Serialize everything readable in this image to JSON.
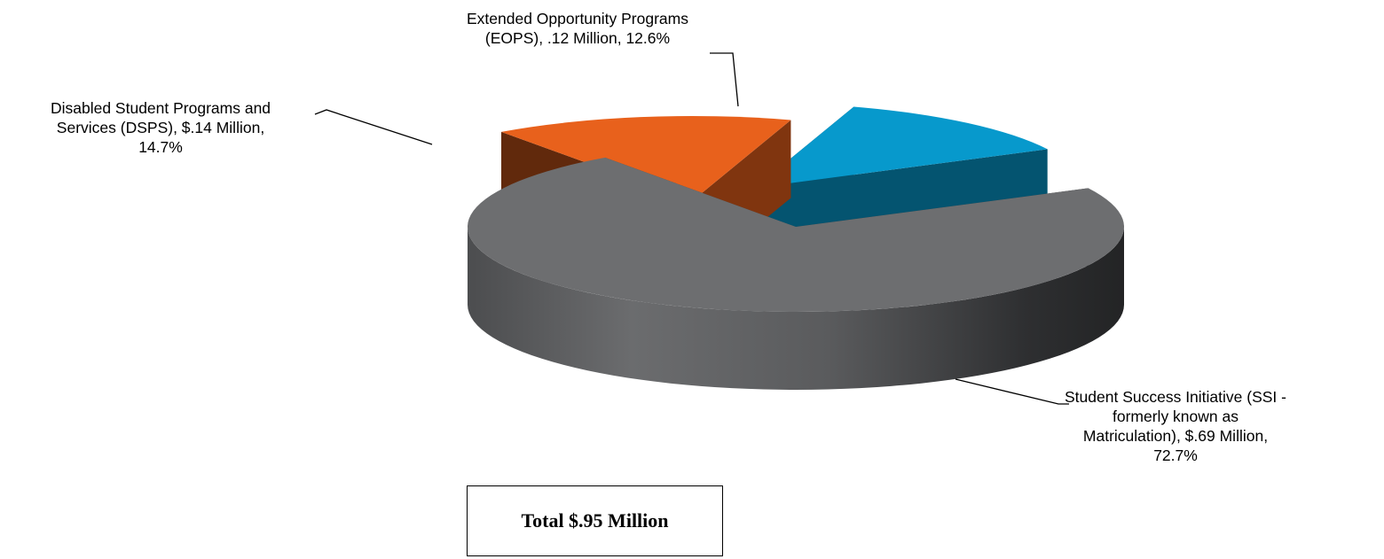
{
  "chart_data": {
    "type": "pie",
    "three_d": true,
    "exploded": true,
    "title": "",
    "slices": [
      {
        "name": "Student Success Initiative (SSI - formerly known as Matriculation)",
        "value": 0.69,
        "value_text": "$.69 Million",
        "percent": 72.7,
        "color": "#6d6e70",
        "label_lines": [
          "Student Success Initiative (SSI -",
          "formerly known as",
          "Matriculation), $.69 Million,",
          "72.7%"
        ]
      },
      {
        "name": "Disabled Student Programs and Services (DSPS)",
        "value": 0.14,
        "value_text": "$.14 Million",
        "percent": 14.7,
        "color": "#e8611c",
        "label_lines": [
          "Disabled Student Programs and",
          "Services (DSPS), $.14 Million,",
          "14.7%"
        ]
      },
      {
        "name": "Extended Opportunity Programs (EOPS)",
        "value": 0.12,
        "value_text": ".12 Million",
        "percent": 12.6,
        "color": "#0799cc",
        "label_lines": [
          "Extended Opportunity Programs",
          "(EOPS), .12 Million, 12.6%"
        ]
      }
    ],
    "total_label": "Total $.95 Million"
  }
}
